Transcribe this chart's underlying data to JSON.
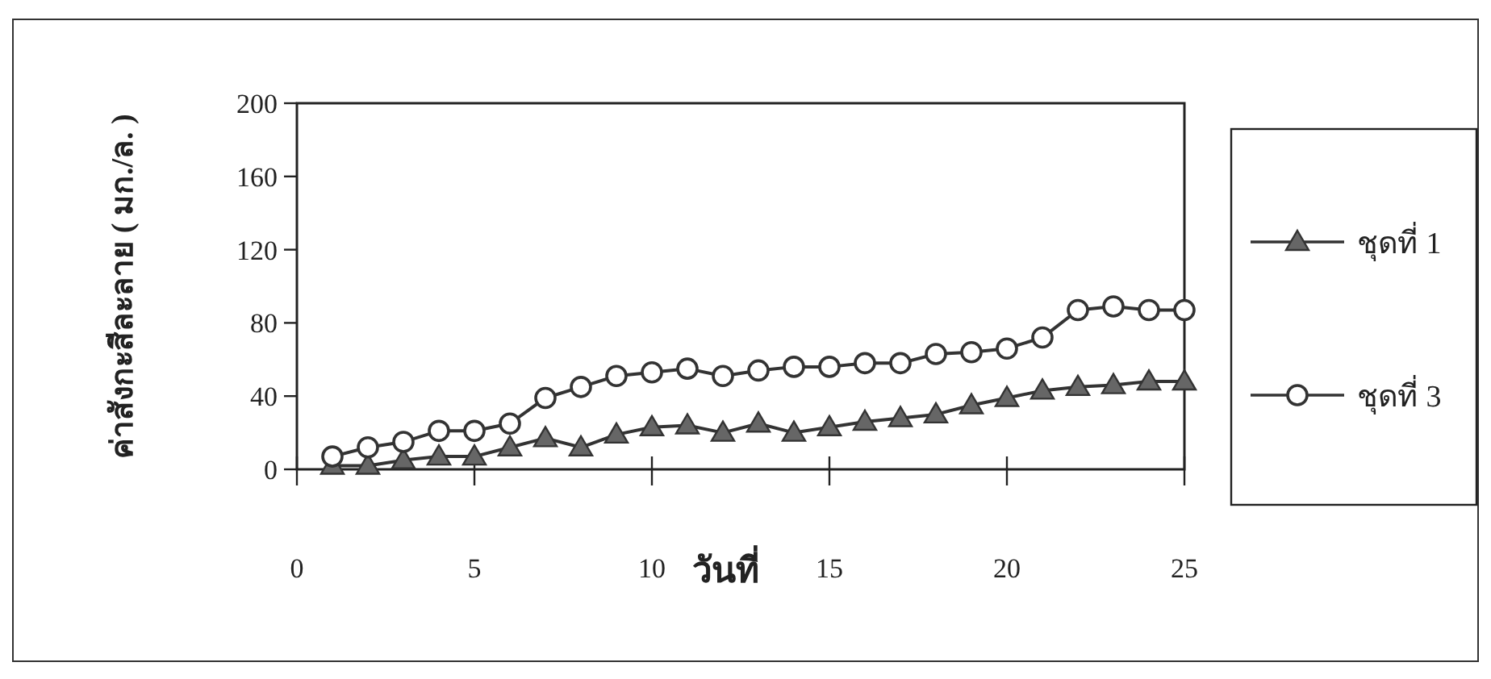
{
  "chart_data": {
    "type": "line",
    "xlabel": "วันที่",
    "ylabel": "ค่าสังกะสีละลาย ( มก./ล. )",
    "x": [
      1,
      2,
      3,
      4,
      5,
      6,
      7,
      8,
      9,
      10,
      11,
      12,
      13,
      14,
      15,
      16,
      17,
      18,
      19,
      20,
      21,
      22,
      23,
      24,
      25
    ],
    "xlim": [
      0,
      25
    ],
    "ylim": [
      0,
      200
    ],
    "xticks": [
      0,
      5,
      10,
      15,
      20,
      25
    ],
    "yticks": [
      0,
      40,
      80,
      120,
      160,
      200
    ],
    "legend": "right",
    "series": [
      {
        "name": "ชุดที่ 1",
        "color": "#333333",
        "marker": "triangle",
        "values": [
          2,
          2,
          5,
          7,
          7,
          12,
          17,
          12,
          19,
          23,
          24,
          20,
          25,
          20,
          23,
          26,
          28,
          30,
          35,
          39,
          43,
          45,
          46,
          48,
          48
        ]
      },
      {
        "name": "ชุดที่ 3",
        "color": "#333333",
        "marker": "circle",
        "values": [
          7,
          12,
          15,
          21,
          21,
          25,
          39,
          45,
          51,
          53,
          55,
          51,
          54,
          56,
          56,
          58,
          58,
          63,
          64,
          66,
          72,
          87,
          89,
          87,
          87
        ]
      }
    ]
  }
}
